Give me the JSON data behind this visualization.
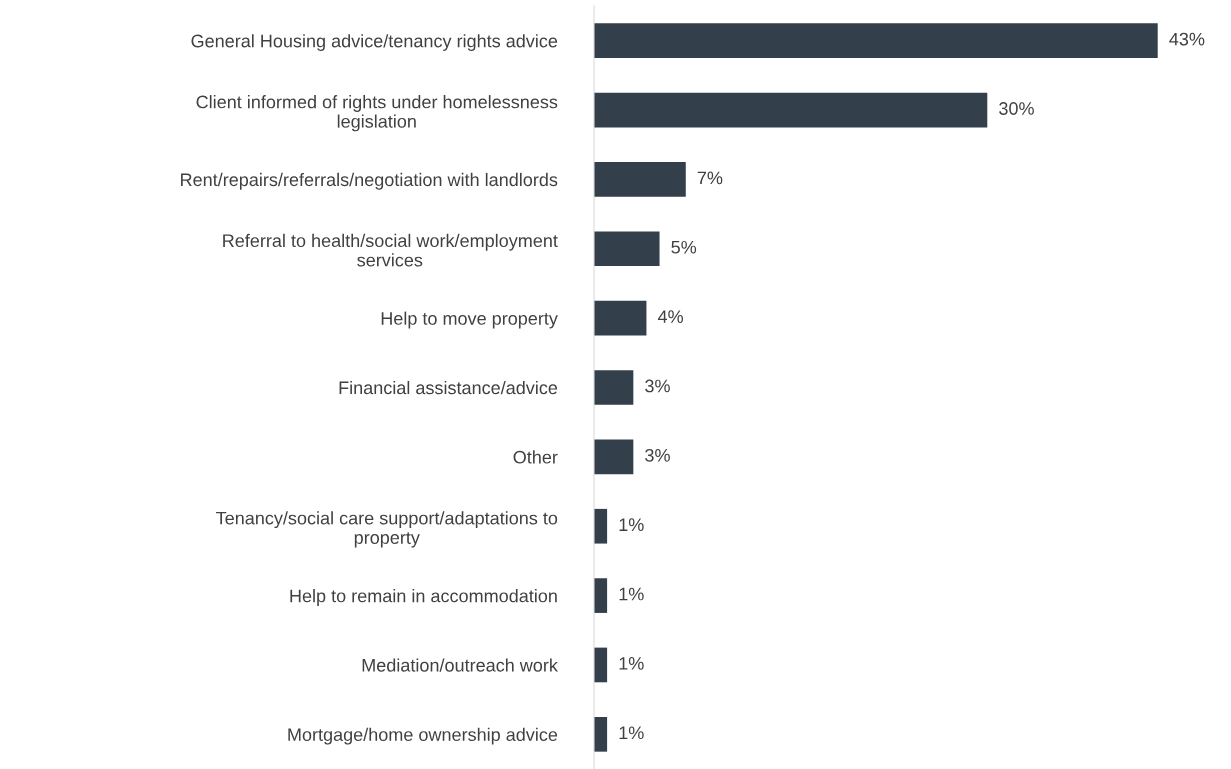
{
  "chart_data": {
    "type": "bar",
    "orientation": "horizontal",
    "categories": [
      "General Housing advice/tenancy rights advice",
      "Client informed of rights under homelessness\nlegislation",
      "Rent/repairs/referrals/negotiation with landlords",
      "Referral to health/social work/employment\nservices",
      "Help to move property",
      "Financial assistance/advice",
      "Other",
      "Tenancy/social care support/adaptations to\nproperty",
      "Help to remain in accommodation",
      "Mediation/outreach work",
      "Mortgage/home ownership advice"
    ],
    "values": [
      43,
      30,
      7,
      5,
      4,
      3,
      3,
      1,
      1,
      1,
      1
    ],
    "value_labels": [
      "43%",
      "30%",
      "7%",
      "5%",
      "4%",
      "3%",
      "3%",
      "1%",
      "1%",
      "1%",
      "1%"
    ],
    "color": "#333f4b",
    "grid": false
  }
}
